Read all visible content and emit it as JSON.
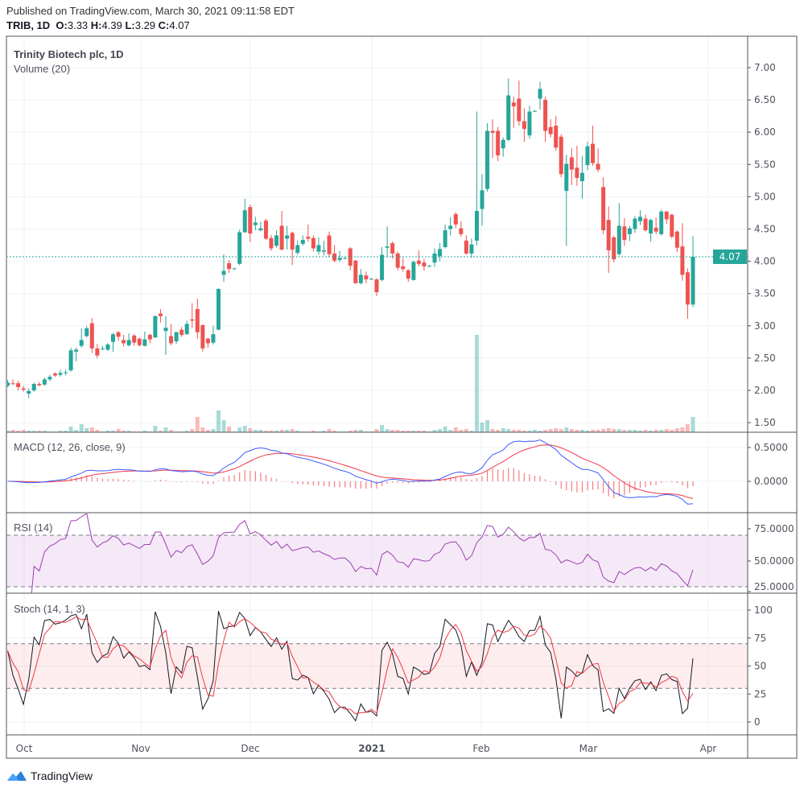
{
  "header": {
    "published": "Published on TradingView.com, March 30, 2021 09:11:58 EDT",
    "symbol": "TRIB, 1D",
    "o_label": "O:",
    "o_value": "3.33",
    "h_label": "H:",
    "h_value": "4.39",
    "l_label": "L:",
    "l_value": "3.29",
    "c_label": "C:",
    "c_value": "4.07"
  },
  "legend": {
    "title": "Trinity Biotech plc, 1D",
    "volume": "Volume (20)",
    "macd": "MACD (12, 26, close, 9)",
    "rsi": "RSI (14)",
    "stoch": "Stoch (14, 1, 3)"
  },
  "footer": {
    "brand": "TradingView",
    "icon": "tradingview-logo-icon"
  },
  "colors": {
    "up": "#26a69a",
    "down": "#ef5350",
    "macd": "#3d5afe",
    "signal": "#f23645",
    "rsi": "#9c3fb0",
    "stoch_k": "#131722",
    "stoch_d": "#f23645",
    "last_price": "#26a69a"
  },
  "chart_data": {
    "type": "candlestick",
    "title": "Trinity Biotech plc, 1D",
    "symbol": "TRIB",
    "last_price": "4.07",
    "price_axis": {
      "ylim": [
        1.4,
        7.45
      ],
      "ticks": [
        "7.00",
        "6.50",
        "6.00",
        "5.50",
        "5.00",
        "4.50",
        "4.00",
        "3.50",
        "3.00",
        "2.50",
        "2.00",
        "1.50"
      ]
    },
    "time_axis": {
      "labels": [
        "Oct",
        "Nov",
        "Dec",
        "2021",
        "Feb",
        "Mar",
        "Apr"
      ]
    },
    "ohlc": [
      [
        2.07,
        2.16,
        2.05,
        2.12
      ],
      [
        2.11,
        2.17,
        2.08,
        2.1
      ],
      [
        2.11,
        2.15,
        2.0,
        2.05
      ],
      [
        2.03,
        2.07,
        1.98,
        2.01
      ],
      [
        1.95,
        2.03,
        1.88,
        1.99
      ],
      [
        2.0,
        2.12,
        1.98,
        2.1
      ],
      [
        2.1,
        2.13,
        2.06,
        2.08
      ],
      [
        2.09,
        2.2,
        2.07,
        2.17
      ],
      [
        2.17,
        2.24,
        2.14,
        2.21
      ],
      [
        2.26,
        2.28,
        2.21,
        2.23
      ],
      [
        2.24,
        2.32,
        2.21,
        2.27
      ],
      [
        2.27,
        2.32,
        2.23,
        2.28
      ],
      [
        2.31,
        2.66,
        2.29,
        2.62
      ],
      [
        2.6,
        2.66,
        2.45,
        2.63
      ],
      [
        2.69,
        2.96,
        2.66,
        2.78
      ],
      [
        2.84,
        3.0,
        2.82,
        2.96
      ],
      [
        3.04,
        3.12,
        2.58,
        2.65
      ],
      [
        2.65,
        2.72,
        2.5,
        2.54
      ],
      [
        2.64,
        2.69,
        2.62,
        2.65
      ],
      [
        2.63,
        2.73,
        2.61,
        2.71
      ],
      [
        2.75,
        2.89,
        2.6,
        2.87
      ],
      [
        2.9,
        2.92,
        2.77,
        2.83
      ],
      [
        2.78,
        2.86,
        2.68,
        2.73
      ],
      [
        2.7,
        2.88,
        2.68,
        2.78
      ],
      [
        2.85,
        2.87,
        2.69,
        2.74
      ],
      [
        2.8,
        2.82,
        2.68,
        2.7
      ],
      [
        2.69,
        2.91,
        2.68,
        2.79
      ],
      [
        2.86,
        2.88,
        2.73,
        2.79
      ],
      [
        2.82,
        3.16,
        2.81,
        3.15
      ],
      [
        3.19,
        3.26,
        3.05,
        3.15
      ],
      [
        2.92,
        3.15,
        2.55,
        2.97
      ],
      [
        2.84,
        3.03,
        2.7,
        2.73
      ],
      [
        2.76,
        2.91,
        2.72,
        2.9
      ],
      [
        2.94,
        2.98,
        2.83,
        2.86
      ],
      [
        2.87,
        3.08,
        2.86,
        3.03
      ],
      [
        3.1,
        3.35,
        2.97,
        3.08
      ],
      [
        3.26,
        3.42,
        2.8,
        2.9
      ],
      [
        3.01,
        3.02,
        2.6,
        2.65
      ],
      [
        2.8,
        2.82,
        2.66,
        2.73
      ],
      [
        2.74,
        3.0,
        2.71,
        2.87
      ],
      [
        2.94,
        3.58,
        2.93,
        3.57
      ],
      [
        3.79,
        4.11,
        3.68,
        3.85
      ],
      [
        3.97,
        4.02,
        3.82,
        3.88
      ],
      [
        3.88,
        3.9,
        3.87,
        3.89
      ],
      [
        3.96,
        4.49,
        3.94,
        4.45
      ],
      [
        4.45,
        4.97,
        4.44,
        4.79
      ],
      [
        4.84,
        4.88,
        4.3,
        4.43
      ],
      [
        4.56,
        4.69,
        4.48,
        4.6
      ],
      [
        4.48,
        4.61,
        4.46,
        4.51
      ],
      [
        4.63,
        4.66,
        4.33,
        4.35
      ],
      [
        4.36,
        4.41,
        4.16,
        4.2
      ],
      [
        4.24,
        4.48,
        4.21,
        4.4
      ],
      [
        4.55,
        4.78,
        4.17,
        4.18
      ],
      [
        4.35,
        4.55,
        4.18,
        4.4
      ],
      [
        4.44,
        4.46,
        3.94,
        4.18
      ],
      [
        4.13,
        4.32,
        4.1,
        4.25
      ],
      [
        4.27,
        4.4,
        4.24,
        4.33
      ],
      [
        4.38,
        4.57,
        4.3,
        4.35
      ],
      [
        4.36,
        4.4,
        4.15,
        4.2
      ],
      [
        4.15,
        4.37,
        4.1,
        4.25
      ],
      [
        4.15,
        4.32,
        4.09,
        4.17
      ],
      [
        4.4,
        4.46,
        4.06,
        4.11
      ],
      [
        4.12,
        4.25,
        3.98,
        4.01
      ],
      [
        4.02,
        4.16,
        3.99,
        4.05
      ],
      [
        4.04,
        4.06,
        4.03,
        4.05
      ],
      [
        4.2,
        4.22,
        3.86,
        3.93
      ],
      [
        4.01,
        4.02,
        3.65,
        3.66
      ],
      [
        3.66,
        3.88,
        3.64,
        3.79
      ],
      [
        3.78,
        3.84,
        3.66,
        3.72
      ],
      [
        3.72,
        3.74,
        3.71,
        3.73
      ],
      [
        3.72,
        3.74,
        3.46,
        3.52
      ],
      [
        3.71,
        4.22,
        3.69,
        4.1
      ],
      [
        4.21,
        4.54,
        4.06,
        4.23
      ],
      [
        4.28,
        4.31,
        4.04,
        4.12
      ],
      [
        4.12,
        4.15,
        3.86,
        3.9
      ],
      [
        3.92,
        4.05,
        3.84,
        3.88
      ],
      [
        3.86,
        3.88,
        3.68,
        3.73
      ],
      [
        3.71,
        4.01,
        3.7,
        3.99
      ],
      [
        4.01,
        4.17,
        3.92,
        3.96
      ],
      [
        3.98,
        4.04,
        3.85,
        3.92
      ],
      [
        3.92,
        3.94,
        3.91,
        3.93
      ],
      [
        3.98,
        4.2,
        3.91,
        4.12
      ],
      [
        4.08,
        4.28,
        4.0,
        4.19
      ],
      [
        4.22,
        4.57,
        4.2,
        4.48
      ],
      [
        4.5,
        4.68,
        4.4,
        4.55
      ],
      [
        4.73,
        4.76,
        4.51,
        4.57
      ],
      [
        4.51,
        4.62,
        4.38,
        4.42
      ],
      [
        4.32,
        4.4,
        4.1,
        4.12
      ],
      [
        4.12,
        4.35,
        4.05,
        4.26
      ],
      [
        4.32,
        6.32,
        4.25,
        4.78
      ],
      [
        4.81,
        5.35,
        4.55,
        5.1
      ],
      [
        5.12,
        6.14,
        5.08,
        6.02
      ],
      [
        6.02,
        6.2,
        5.6,
        5.99
      ],
      [
        6.02,
        6.08,
        5.55,
        5.64
      ],
      [
        5.75,
        5.92,
        5.62,
        5.88
      ],
      [
        5.88,
        6.83,
        5.86,
        6.57
      ],
      [
        6.46,
        6.55,
        6.07,
        6.4
      ],
      [
        6.52,
        6.8,
        6.1,
        6.17
      ],
      [
        6.17,
        6.37,
        5.85,
        6.05
      ],
      [
        5.95,
        6.41,
        5.9,
        6.32
      ],
      [
        6.32,
        6.34,
        6.31,
        6.33
      ],
      [
        6.52,
        6.78,
        6.35,
        6.67
      ],
      [
        6.5,
        6.55,
        5.85,
        6.02
      ],
      [
        6.08,
        6.2,
        5.92,
        5.97
      ],
      [
        6.1,
        6.25,
        5.71,
        5.76
      ],
      [
        5.93,
        5.97,
        5.3,
        5.35
      ],
      [
        5.09,
        5.65,
        4.24,
        5.51
      ],
      [
        5.61,
        5.75,
        5.18,
        5.42
      ],
      [
        5.45,
        5.79,
        5.17,
        5.29
      ],
      [
        5.24,
        5.63,
        4.97,
        5.37
      ],
      [
        5.49,
        5.85,
        5.41,
        5.78
      ],
      [
        5.82,
        6.1,
        5.48,
        5.52
      ],
      [
        5.51,
        5.75,
        5.38,
        5.42
      ],
      [
        5.15,
        5.3,
        4.42,
        4.48
      ],
      [
        4.64,
        4.85,
        3.82,
        4.17
      ],
      [
        4.37,
        4.4,
        3.98,
        4.03
      ],
      [
        4.11,
        4.9,
        4.09,
        4.55
      ],
      [
        4.54,
        4.67,
        4.24,
        4.33
      ],
      [
        4.42,
        4.55,
        4.31,
        4.51
      ],
      [
        4.5,
        4.7,
        4.44,
        4.66
      ],
      [
        4.62,
        4.79,
        4.56,
        4.69
      ],
      [
        4.66,
        4.72,
        4.46,
        4.48
      ],
      [
        4.43,
        4.66,
        4.3,
        4.64
      ],
      [
        4.52,
        4.68,
        4.42,
        4.46
      ],
      [
        4.42,
        4.8,
        4.4,
        4.77
      ],
      [
        4.77,
        4.78,
        4.58,
        4.65
      ],
      [
        4.72,
        4.74,
        4.35,
        4.38
      ],
      [
        4.46,
        4.48,
        4.14,
        4.21
      ],
      [
        4.23,
        4.59,
        3.7,
        3.79
      ],
      [
        3.83,
        3.89,
        3.11,
        3.33
      ],
      [
        3.33,
        4.39,
        3.29,
        4.07
      ]
    ],
    "volume_relative": [
      2,
      3,
      2,
      3,
      2,
      2,
      2,
      2,
      1,
      1,
      2,
      2,
      7,
      3,
      10,
      5,
      6,
      3,
      1,
      2,
      2,
      4,
      2,
      2,
      1,
      1,
      2,
      1,
      8,
      2,
      6,
      3,
      1,
      1,
      2,
      4,
      19,
      6,
      3,
      4,
      27,
      15,
      7,
      1,
      6,
      8,
      5,
      3,
      3,
      2,
      2,
      2,
      3,
      3,
      4,
      2,
      1,
      1,
      2,
      1,
      2,
      4,
      2,
      1,
      1,
      2,
      3,
      3,
      1,
      1,
      4,
      9,
      4,
      3,
      3,
      2,
      2,
      2,
      2,
      2,
      1,
      3,
      4,
      7,
      3,
      6,
      3,
      4,
      2,
      121,
      12,
      15,
      4,
      3,
      5,
      4,
      3,
      3,
      2,
      2,
      3,
      2,
      3,
      4,
      5,
      4,
      6,
      4,
      3,
      3,
      2,
      3,
      3,
      4,
      5,
      4,
      4,
      3,
      3,
      3,
      2,
      3,
      2,
      3,
      3,
      4,
      3,
      5,
      6,
      10,
      19
    ],
    "indicators": {
      "macd": {
        "params": [
          12,
          26,
          9
        ],
        "ticks": [
          "0.5000",
          "0.0000"
        ]
      },
      "rsi": {
        "period": 14,
        "bands": [
          70,
          30
        ],
        "ticks": [
          "75.0000",
          "50.0000",
          "25.0000"
        ]
      },
      "stoch": {
        "params": [
          14,
          1,
          3
        ],
        "bands": [
          70,
          30
        ],
        "ticks": [
          "100",
          "75",
          "50",
          "25",
          "0"
        ]
      }
    }
  }
}
